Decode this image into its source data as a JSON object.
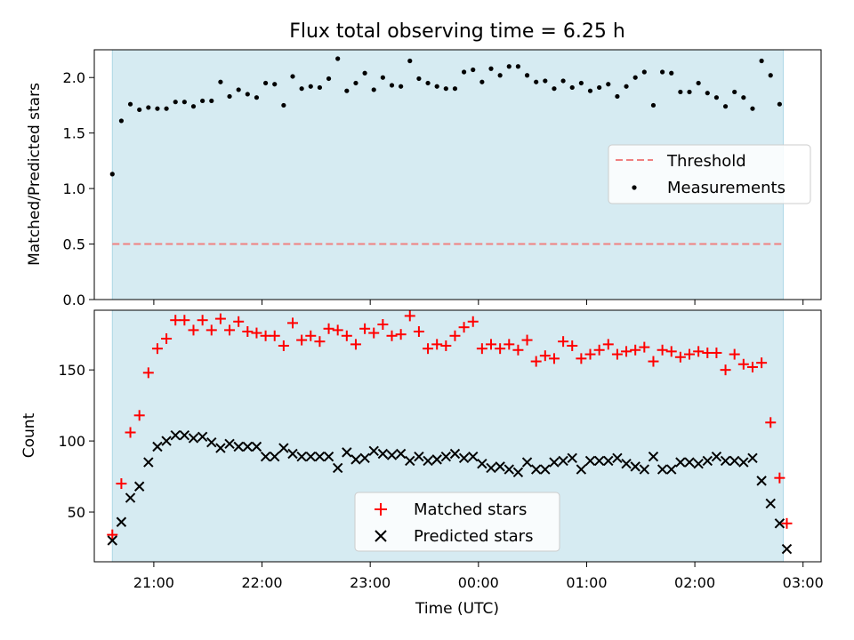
{
  "chart_data": [
    {
      "type": "scatter",
      "title": "Flux total observing time = 6.25 h",
      "ylabel": "Matched/Predicted stars",
      "xlabel": "",
      "xlim": [
        "20:27",
        "03:10"
      ],
      "ylim": [
        0,
        2.25
      ],
      "yticks": [
        "0.0",
        "0.5",
        "1.0",
        "1.5",
        "2.0"
      ],
      "shaded_span": [
        "20:37",
        "02:49"
      ],
      "legend": {
        "placement": "center-right",
        "entries": [
          "Threshold",
          "Measurements"
        ]
      },
      "series": [
        {
          "name": "Threshold",
          "style": "dashed-line",
          "color": "#f08080",
          "x": [
            "20:37",
            "02:49"
          ],
          "values": [
            0.5,
            0.5
          ]
        },
        {
          "name": "Measurements",
          "style": "dot",
          "color": "#000000",
          "x": [
            "20:37",
            "20:42",
            "20:47",
            "20:52",
            "20:57",
            "21:02",
            "21:07",
            "21:12",
            "21:17",
            "21:22",
            "21:27",
            "21:32",
            "21:37",
            "21:42",
            "21:47",
            "21:52",
            "21:57",
            "22:02",
            "22:07",
            "22:12",
            "22:17",
            "22:22",
            "22:27",
            "22:32",
            "22:37",
            "22:42",
            "22:47",
            "22:52",
            "22:57",
            "23:02",
            "23:07",
            "23:12",
            "23:17",
            "23:22",
            "23:27",
            "23:32",
            "23:37",
            "23:42",
            "23:47",
            "23:52",
            "23:57",
            "00:02",
            "00:07",
            "00:12",
            "00:17",
            "00:22",
            "00:27",
            "00:32",
            "00:37",
            "00:42",
            "00:47",
            "00:52",
            "00:57",
            "01:02",
            "01:07",
            "01:12",
            "01:17",
            "01:22",
            "01:27",
            "01:32",
            "01:37",
            "01:42",
            "01:47",
            "01:52",
            "01:57",
            "02:02",
            "02:07",
            "02:12",
            "02:17",
            "02:22",
            "02:27",
            "02:32",
            "02:37",
            "02:42",
            "02:47"
          ],
          "values": [
            1.13,
            1.61,
            1.76,
            1.71,
            1.73,
            1.72,
            1.72,
            1.78,
            1.78,
            1.74,
            1.79,
            1.79,
            1.96,
            1.83,
            1.89,
            1.85,
            1.82,
            1.95,
            1.94,
            1.75,
            2.01,
            1.9,
            1.92,
            1.91,
            1.99,
            2.17,
            1.88,
            1.95,
            2.04,
            1.89,
            2.0,
            1.93,
            1.92,
            2.15,
            1.99,
            1.95,
            1.92,
            1.9,
            1.9,
            2.05,
            2.07,
            1.96,
            2.08,
            2.02,
            2.1,
            2.1,
            2.02,
            1.96,
            1.97,
            1.9,
            1.97,
            1.91,
            1.95,
            1.88,
            1.91,
            1.94,
            1.83,
            1.92,
            2.0,
            2.05,
            1.75,
            2.05,
            2.04,
            1.87,
            1.87,
            1.95,
            1.86,
            1.82,
            1.74,
            1.87,
            1.82,
            1.72,
            2.15,
            2.02,
            1.76
          ]
        }
      ]
    },
    {
      "type": "scatter",
      "title": "",
      "ylabel": "Count",
      "xlabel": "Time (UTC)",
      "xlim": [
        "20:27",
        "03:10"
      ],
      "ylim": [
        15,
        192
      ],
      "yticks": [
        "50",
        "100",
        "150"
      ],
      "xticks": [
        "21:00",
        "22:00",
        "23:00",
        "00:00",
        "01:00",
        "02:00",
        "03:00"
      ],
      "shaded_span": [
        "20:37",
        "02:49"
      ],
      "legend": {
        "placement": "lower-center",
        "entries": [
          "Matched stars",
          "Predicted stars"
        ]
      },
      "series": [
        {
          "name": "Matched stars",
          "marker": "plus",
          "color": "#ff0000",
          "x": [
            "20:37",
            "20:42",
            "20:47",
            "20:52",
            "20:57",
            "21:02",
            "21:07",
            "21:12",
            "21:17",
            "21:22",
            "21:27",
            "21:32",
            "21:37",
            "21:42",
            "21:47",
            "21:52",
            "21:57",
            "22:02",
            "22:07",
            "22:12",
            "22:17",
            "22:22",
            "22:27",
            "22:32",
            "22:37",
            "22:42",
            "22:47",
            "22:52",
            "22:57",
            "23:02",
            "23:07",
            "23:12",
            "23:17",
            "23:22",
            "23:27",
            "23:32",
            "23:37",
            "23:42",
            "23:47",
            "23:52",
            "23:57",
            "00:02",
            "00:07",
            "00:12",
            "00:17",
            "00:22",
            "00:27",
            "00:32",
            "00:37",
            "00:42",
            "00:47",
            "00:52",
            "00:57",
            "01:02",
            "01:07",
            "01:12",
            "01:17",
            "01:22",
            "01:27",
            "01:32",
            "01:37",
            "01:42",
            "01:47",
            "01:52",
            "01:57",
            "02:02",
            "02:07",
            "02:12",
            "02:17",
            "02:22",
            "02:27",
            "02:32",
            "02:37",
            "02:42",
            "02:47",
            "02:51"
          ],
          "values": [
            34,
            70,
            106,
            118,
            148,
            165,
            172,
            185,
            185,
            178,
            185,
            178,
            186,
            178,
            184,
            177,
            176,
            174,
            174,
            167,
            183,
            171,
            174,
            170,
            179,
            178,
            174,
            168,
            179,
            176,
            182,
            174,
            175,
            188,
            177,
            165,
            168,
            167,
            174,
            180,
            184,
            165,
            168,
            165,
            168,
            164,
            171,
            156,
            160,
            158,
            170,
            167,
            158,
            161,
            164,
            168,
            161,
            163,
            164,
            166,
            156,
            164,
            163,
            159,
            161,
            163,
            162,
            162,
            150,
            161,
            154,
            152,
            155,
            113,
            74,
            42
          ]
        },
        {
          "name": "Predicted stars",
          "marker": "x",
          "color": "#000000",
          "x": [
            "20:37",
            "20:42",
            "20:47",
            "20:52",
            "20:57",
            "21:02",
            "21:07",
            "21:12",
            "21:17",
            "21:22",
            "21:27",
            "21:32",
            "21:37",
            "21:42",
            "21:47",
            "21:52",
            "21:57",
            "22:02",
            "22:07",
            "22:12",
            "22:17",
            "22:22",
            "22:27",
            "22:32",
            "22:37",
            "22:42",
            "22:47",
            "22:52",
            "22:57",
            "23:02",
            "23:07",
            "23:12",
            "23:17",
            "23:22",
            "23:27",
            "23:32",
            "23:37",
            "23:42",
            "23:47",
            "23:52",
            "23:57",
            "00:02",
            "00:07",
            "00:12",
            "00:17",
            "00:22",
            "00:27",
            "00:32",
            "00:37",
            "00:42",
            "00:47",
            "00:52",
            "00:57",
            "01:02",
            "01:07",
            "01:12",
            "01:17",
            "01:22",
            "01:27",
            "01:32",
            "01:37",
            "01:42",
            "01:47",
            "01:52",
            "01:57",
            "02:02",
            "02:07",
            "02:12",
            "02:17",
            "02:22",
            "02:27",
            "02:32",
            "02:37",
            "02:42",
            "02:47",
            "02:51"
          ],
          "values": [
            30,
            43,
            60,
            68,
            85,
            96,
            100,
            104,
            104,
            102,
            103,
            99,
            95,
            98,
            96,
            96,
            96,
            89,
            89,
            95,
            91,
            89,
            89,
            89,
            89,
            81,
            92,
            87,
            88,
            93,
            91,
            90,
            91,
            86,
            89,
            86,
            87,
            89,
            91,
            88,
            89,
            84,
            81,
            82,
            80,
            78,
            85,
            80,
            80,
            85,
            86,
            88,
            80,
            86,
            86,
            86,
            88,
            84,
            82,
            80,
            89,
            80,
            80,
            85,
            85,
            84,
            86,
            89,
            86,
            86,
            85,
            88,
            72,
            56,
            42,
            24
          ]
        }
      ]
    }
  ]
}
